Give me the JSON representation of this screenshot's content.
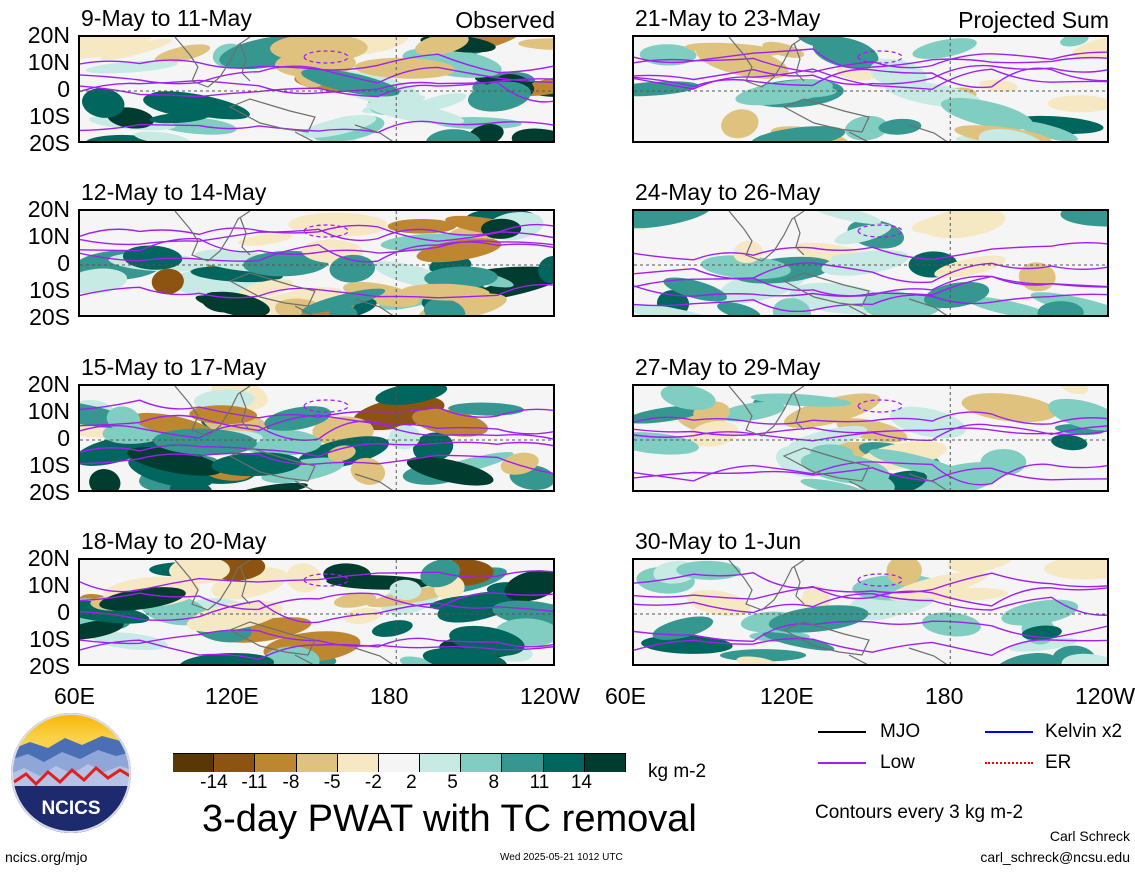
{
  "panels": [
    {
      "title": "9-May to 11-May",
      "label": "Observed",
      "col": 0,
      "row": 0
    },
    {
      "title": "12-May to 14-May",
      "label": "",
      "col": 0,
      "row": 1
    },
    {
      "title": "15-May to 17-May",
      "label": "",
      "col": 0,
      "row": 2
    },
    {
      "title": "18-May to 20-May",
      "label": "",
      "col": 0,
      "row": 3
    },
    {
      "title": "21-May to 23-May",
      "label": "Projected Sum",
      "col": 1,
      "row": 0
    },
    {
      "title": "24-May to 26-May",
      "label": "",
      "col": 1,
      "row": 1
    },
    {
      "title": "27-May to 29-May",
      "label": "",
      "col": 1,
      "row": 2
    },
    {
      "title": "30-May to 1-Jun",
      "label": "",
      "col": 1,
      "row": 3
    }
  ],
  "lat_labels": [
    "20N",
    "10N",
    "0",
    "10S",
    "20S"
  ],
  "lon_labels": {
    "left": [
      "60E",
      "120E",
      "180",
      "120W"
    ],
    "right": [
      "60E",
      "120E",
      "180",
      "120W"
    ]
  },
  "colorbar": {
    "colors": [
      "#5a3806",
      "#8c5410",
      "#bf8632",
      "#dfc27d",
      "#f6e8c3",
      "#f5f5f5",
      "#c7eae5",
      "#80cdc1",
      "#35978f",
      "#01665e",
      "#003c30"
    ],
    "ticks": [
      "-14",
      "-11",
      "-8",
      "-5",
      "-2",
      "2",
      "5",
      "8",
      "11",
      "14"
    ],
    "units": "kg m-2"
  },
  "main_title": "3-day PWAT with TC removal",
  "legend": {
    "items": [
      {
        "name": "MJO",
        "color": "#000000"
      },
      {
        "name": "Kelvin x2",
        "color": "#0000ff"
      },
      {
        "name": "Low",
        "color": "#a020f0"
      },
      {
        "name": "ER",
        "color": "#ff0000"
      }
    ],
    "contour_note": "Contours every 3 kg m-2"
  },
  "logo": {
    "text": "NCICS"
  },
  "footer": {
    "url": "ncics.org/mjo",
    "timestamp": "Wed 2025-05-21 1012 UTC",
    "author": "Carl Schreck",
    "email": "carl_schreck@ncsu.edu"
  }
}
